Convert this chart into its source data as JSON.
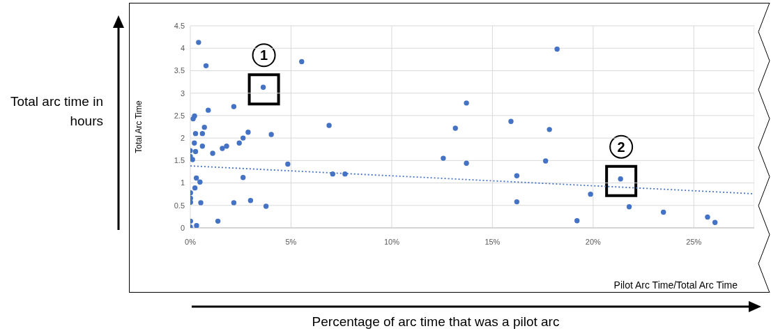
{
  "chart_data": {
    "type": "scatter",
    "xlabel": "Pilot Arc Time/Total Arc Time",
    "ylabel": "Total Arc Time",
    "xlim": [
      0,
      28
    ],
    "xticks": [
      {
        "value": 0,
        "label": "0%"
      },
      {
        "value": 5,
        "label": "5%"
      },
      {
        "value": 10,
        "label": "10%"
      },
      {
        "value": 15,
        "label": "15%"
      },
      {
        "value": 20,
        "label": "20%"
      },
      {
        "value": 25,
        "label": "25%"
      }
    ],
    "ylim": [
      0,
      4.5
    ],
    "yticks": [
      0,
      0.5,
      1,
      1.5,
      2,
      2.5,
      3,
      3.5,
      4,
      4.5
    ],
    "grid": true,
    "series": [
      {
        "color": "#4472c4",
        "marker": "circle",
        "x": [
          0.41,
          0.78,
          3.62,
          5.53,
          0.89,
          2.16,
          0.14,
          0.21,
          0.7,
          0.26,
          0.6,
          2.87,
          4.02,
          2.62,
          2.43,
          0.2,
          0.6,
          0,
          0.26,
          1.11,
          1.59,
          1.8,
          0,
          0.11,
          4.84,
          0.3,
          0.48,
          2.62,
          0.23,
          0.01,
          0.01,
          0.01,
          0.52,
          2.16,
          2.99,
          3.76,
          1.37,
          0.01,
          0.31,
          0,
          6.89,
          7.07,
          7.68,
          12.56,
          13.16,
          13.71,
          13.71,
          15.92,
          16.21,
          16.21,
          18.21,
          17.83,
          17.64,
          21.36,
          19.87,
          19.2,
          21.79,
          23.49,
          25.68,
          26.05
        ],
        "values": [
          4.13,
          3.61,
          3.13,
          3.7,
          2.62,
          2.7,
          2.43,
          2.49,
          2.24,
          2.1,
          2.1,
          2.13,
          2.08,
          2,
          1.89,
          1.89,
          1.82,
          1.72,
          1.7,
          1.66,
          1.77,
          1.82,
          1.59,
          1.52,
          1.42,
          1.11,
          1.02,
          1.12,
          0.89,
          0.78,
          0.66,
          0.57,
          0.56,
          0.56,
          0.61,
          0.48,
          0.15,
          0.15,
          0.05,
          0.02,
          2.28,
          1.2,
          1.2,
          1.55,
          2.22,
          2.78,
          1.44,
          2.37,
          1.16,
          0.58,
          3.98,
          2.19,
          1.49,
          1.09,
          0.75,
          0.16,
          0.47,
          0.35,
          0.24,
          0.12
        ]
      },
      {
        "type": "line",
        "color": "#4472c4",
        "line_style": "dotted",
        "marker": "none",
        "x": [
          0,
          28
        ],
        "values": [
          1.38,
          0.76
        ]
      }
    ],
    "annotations": [
      {
        "text": "1",
        "x": 3.62,
        "y": 3.13
      },
      {
        "text": "2",
        "x": 21.36,
        "y": 1.09
      },
      "Total arc time in hours",
      "Percentage of arc time that was a pilot arc"
    ]
  }
}
